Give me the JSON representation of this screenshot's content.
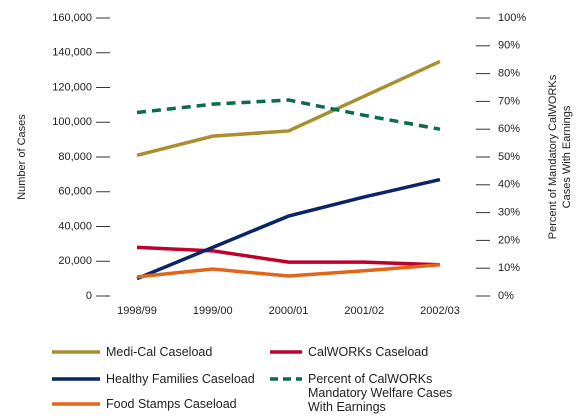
{
  "chart_data": {
    "type": "line",
    "ylabel": "Number of Cases",
    "y2label": [
      "Percent of Mandatory CalWORKs",
      "Cases With Earnings"
    ],
    "categories": [
      "1998/99",
      "1999/00",
      "2000/01",
      "2001/02",
      "2002/03"
    ],
    "ylim": [
      0,
      160000
    ],
    "yticks": [
      0,
      {
        "value": 20000,
        "label": "20,000"
      },
      {
        "value": 40000,
        "label": "40,000"
      },
      {
        "value": 60000,
        "label": "60,000"
      },
      {
        "value": 80000,
        "label": "80,000"
      },
      {
        "value": 100000,
        "label": "100,000"
      },
      {
        "value": 120000,
        "label": "120,000"
      },
      {
        "value": 140000,
        "label": "140,000"
      },
      {
        "value": 160000,
        "label": "160,000"
      }
    ],
    "y2lim": [
      0,
      100
    ],
    "y2ticks": [
      {
        "value": 0,
        "label": "0%"
      },
      {
        "value": 10,
        "label": "10%"
      },
      {
        "value": 20,
        "label": "20%"
      },
      {
        "value": 30,
        "label": "30%"
      },
      {
        "value": 40,
        "label": "40%"
      },
      {
        "value": 50,
        "label": "50%"
      },
      {
        "value": 60,
        "label": "60%"
      },
      {
        "value": 70,
        "label": "70%"
      },
      {
        "value": 80,
        "label": "80%"
      },
      {
        "value": 90,
        "label": "90%"
      },
      {
        "value": 100,
        "label": "100%"
      }
    ],
    "series": [
      {
        "name": "Medi-Cal Caseload",
        "color": "#a89030",
        "values": [
          81000,
          92000,
          95000,
          115000,
          135000
        ]
      },
      {
        "name": "CalWORKs Caseload",
        "color": "#c0002a",
        "values": [
          28000,
          26000,
          19500,
          19500,
          18000
        ]
      },
      {
        "name": "Healthy Families Caseload",
        "color": "#0a2468",
        "values": [
          10000,
          28000,
          46000,
          57000,
          67000
        ]
      },
      {
        "name": "Percent of CalWORKs Mandatory Welfare Cases With Earnings",
        "color": "#0a6b50",
        "dashed": true,
        "axis": "y2",
        "values": [
          66,
          69,
          70.5,
          65,
          60
        ]
      },
      {
        "name": "Food Stamps Caseload",
        "color": "#e0661a",
        "values": [
          11000,
          15500,
          11500,
          14500,
          18000
        ]
      }
    ]
  }
}
